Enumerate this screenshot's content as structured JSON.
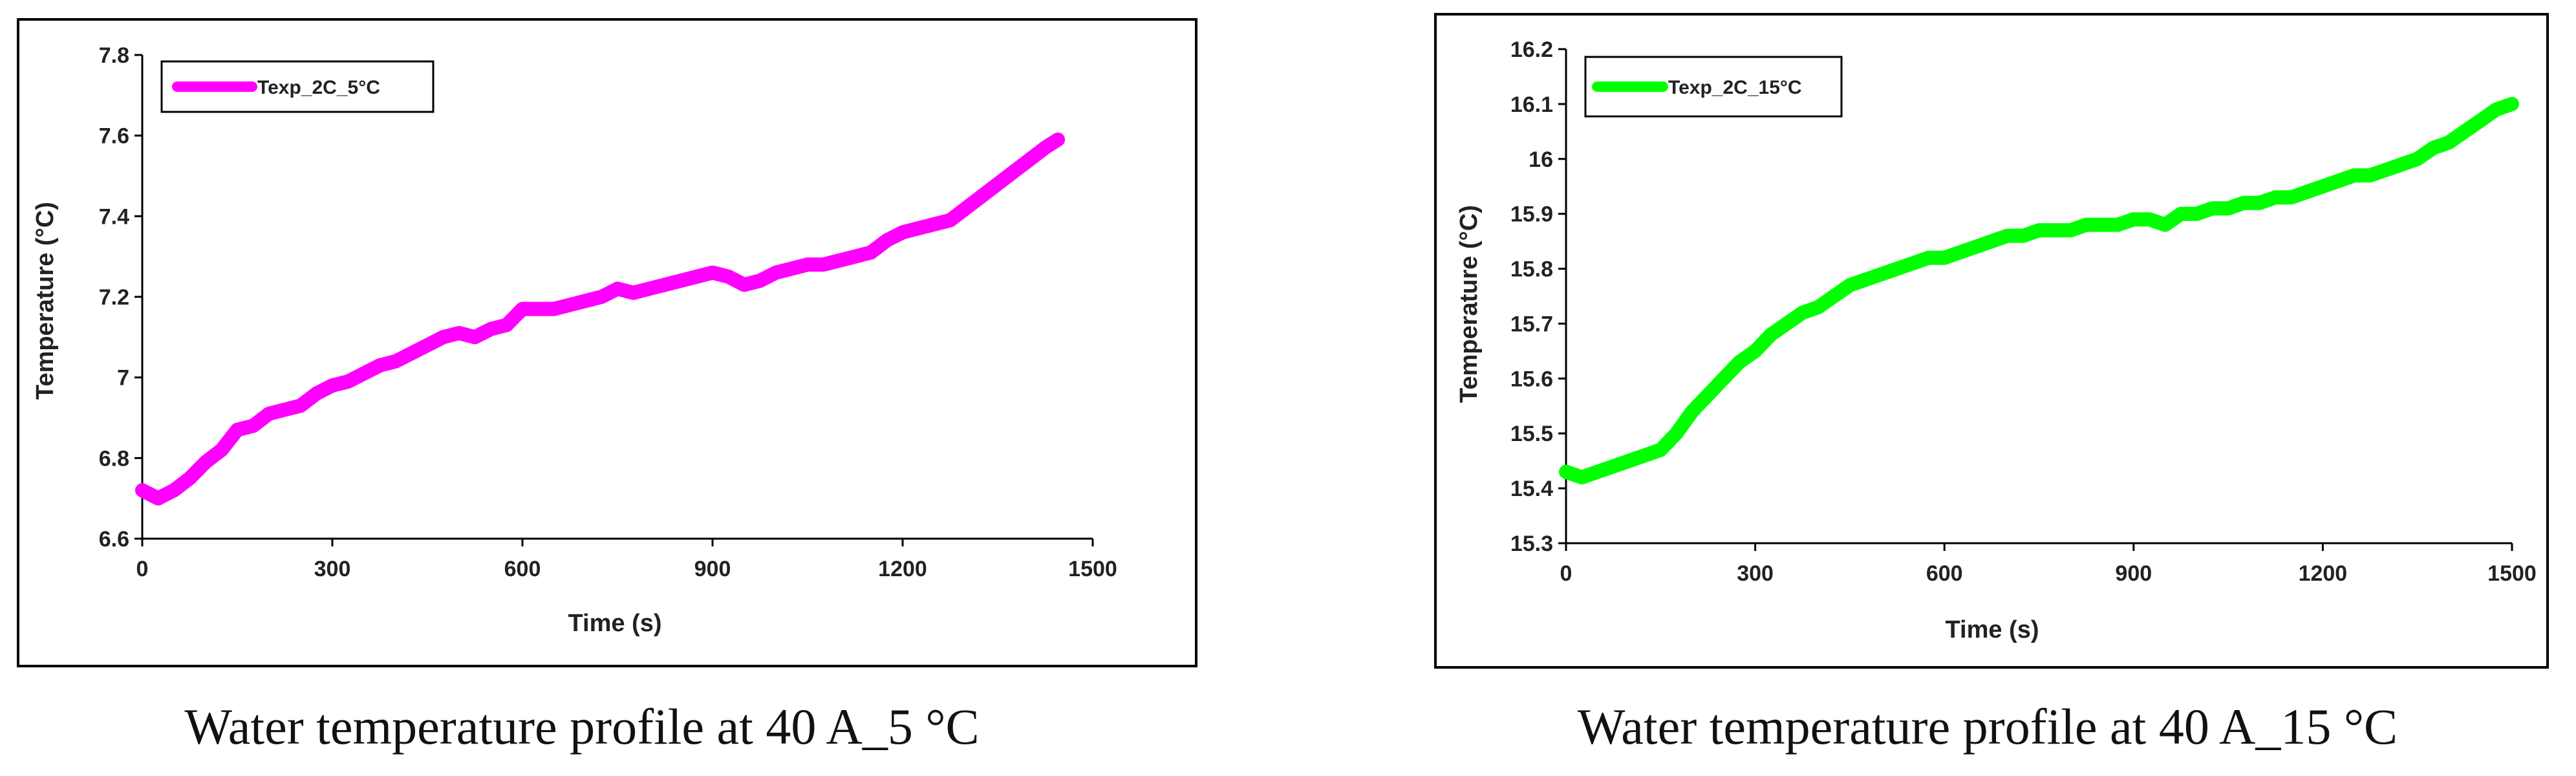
{
  "chart_data": [
    {
      "type": "line",
      "series": [
        {
          "name": "Texp_2C_5°C",
          "color": "#FF00FF",
          "x": [
            0,
            25,
            50,
            75,
            100,
            125,
            150,
            175,
            200,
            225,
            250,
            275,
            300,
            325,
            350,
            375,
            400,
            425,
            450,
            475,
            500,
            525,
            550,
            575,
            600,
            625,
            650,
            675,
            700,
            725,
            750,
            775,
            800,
            825,
            850,
            875,
            900,
            925,
            950,
            975,
            1000,
            1025,
            1050,
            1075,
            1100,
            1125,
            1150,
            1175,
            1200,
            1225,
            1250,
            1275,
            1300,
            1325,
            1350,
            1375,
            1400,
            1425,
            1445
          ],
          "y": [
            6.72,
            6.7,
            6.72,
            6.75,
            6.79,
            6.82,
            6.87,
            6.88,
            6.91,
            6.92,
            6.93,
            6.96,
            6.98,
            6.99,
            7.01,
            7.03,
            7.04,
            7.06,
            7.08,
            7.1,
            7.11,
            7.1,
            7.12,
            7.13,
            7.17,
            7.17,
            7.17,
            7.18,
            7.19,
            7.2,
            7.22,
            7.21,
            7.22,
            7.23,
            7.24,
            7.25,
            7.26,
            7.25,
            7.23,
            7.24,
            7.26,
            7.27,
            7.28,
            7.28,
            7.29,
            7.3,
            7.31,
            7.34,
            7.36,
            7.37,
            7.38,
            7.39,
            7.42,
            7.45,
            7.48,
            7.51,
            7.54,
            7.57,
            7.59
          ]
        }
      ],
      "title": "",
      "xlabel": "Time (s)",
      "ylabel": "Temperature (°C)",
      "xlim": [
        0,
        1500
      ],
      "ylim": [
        6.6,
        7.8
      ],
      "xticks": [
        "0",
        "300",
        "600",
        "900",
        "1200",
        "1500"
      ],
      "yticks": [
        "6.6",
        "6.8",
        "7",
        "7.2",
        "7.4",
        "7.6",
        "7.8"
      ],
      "legend": "top-left",
      "grid": false,
      "caption": "Water temperature profile at 40 A_5 °C"
    },
    {
      "type": "line",
      "series": [
        {
          "name": "Texp_2C_15°C",
          "color": "#00FF00",
          "x": [
            0,
            25,
            50,
            75,
            100,
            125,
            150,
            175,
            200,
            225,
            250,
            275,
            300,
            325,
            350,
            375,
            400,
            425,
            450,
            475,
            500,
            525,
            550,
            575,
            600,
            625,
            650,
            675,
            700,
            725,
            750,
            775,
            800,
            825,
            850,
            875,
            900,
            925,
            950,
            975,
            1000,
            1025,
            1050,
            1075,
            1100,
            1125,
            1150,
            1175,
            1200,
            1225,
            1250,
            1275,
            1300,
            1325,
            1350,
            1375,
            1400,
            1425,
            1450,
            1475,
            1500
          ],
          "y": [
            15.43,
            15.42,
            15.43,
            15.44,
            15.45,
            15.46,
            15.47,
            15.5,
            15.54,
            15.57,
            15.6,
            15.63,
            15.65,
            15.68,
            15.7,
            15.72,
            15.73,
            15.75,
            15.77,
            15.78,
            15.79,
            15.8,
            15.81,
            15.82,
            15.82,
            15.83,
            15.84,
            15.85,
            15.86,
            15.86,
            15.87,
            15.87,
            15.87,
            15.88,
            15.88,
            15.88,
            15.89,
            15.89,
            15.88,
            15.9,
            15.9,
            15.91,
            15.91,
            15.92,
            15.92,
            15.93,
            15.93,
            15.94,
            15.95,
            15.96,
            15.97,
            15.97,
            15.98,
            15.99,
            16.0,
            16.02,
            16.03,
            16.05,
            16.07,
            16.09,
            16.1
          ]
        }
      ],
      "title": "",
      "xlabel": "Time (s)",
      "ylabel": "Temperature (°C)",
      "xlim": [
        0,
        1500
      ],
      "ylim": [
        15.3,
        16.2
      ],
      "xticks": [
        "0",
        "300",
        "600",
        "900",
        "1200",
        "1500"
      ],
      "yticks": [
        "15.3",
        "15.4",
        "15.5",
        "15.6",
        "15.7",
        "15.8",
        "15.9",
        "16",
        "16.1",
        "16.2"
      ],
      "legend": "top-left",
      "grid": false,
      "caption": "Water temperature profile at 40 A_15 °C"
    }
  ]
}
